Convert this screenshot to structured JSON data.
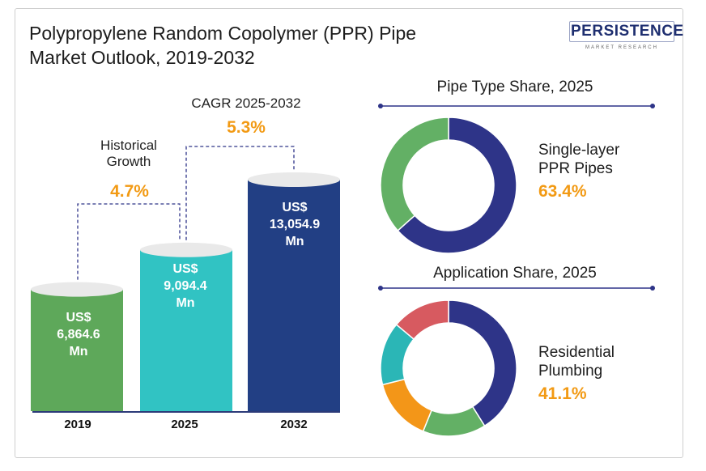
{
  "header": {
    "title_line1": "Polypropylene Random Copolymer (PPR) Pipe",
    "title_line2": "Market Outlook, 2019-2032",
    "logo_text": "PERSISTENCE",
    "logo_sub": "MARKET RESEARCH"
  },
  "colors": {
    "bar_2019": "#5ea85a",
    "bar_2025": "#31c3c3",
    "bar_2032": "#223f84",
    "orange": "#f29a14",
    "donut_navy": "#2e3488",
    "donut_green": "#63b065",
    "donut_orange": "#f39618",
    "donut_teal": "#2bb6b6",
    "donut_red": "#d75a60"
  },
  "annotations": {
    "historical_label_line1": "Historical",
    "historical_label_line2": "Growth",
    "historical_value": "4.7%",
    "cagr_label": "CAGR 2025-2032",
    "cagr_value": "5.3%"
  },
  "chart_data": [
    {
      "type": "bar",
      "categories": [
        "2019",
        "2025",
        "2032"
      ],
      "values": [
        6864.6,
        9094.4,
        13054.9
      ],
      "value_labels": [
        [
          "US$",
          "6,864.6",
          "Mn"
        ],
        [
          "US$",
          "9,094.4",
          "Mn"
        ],
        [
          "US$",
          "13,054.9",
          "Mn"
        ]
      ]
    },
    {
      "type": "pie",
      "title": "Pipe Type Share, 2025",
      "highlight_label_line1": "Single-layer",
      "highlight_label_line2": "PPR Pipes",
      "highlight_value": "63.4%",
      "slices": [
        {
          "value": 63.4,
          "color": "#2e3488"
        },
        {
          "value": 36.6,
          "color": "#63b065"
        }
      ]
    },
    {
      "type": "pie",
      "title": "Application Share, 2025",
      "highlight_label_line1": "Residential",
      "highlight_label_line2": "Plumbing",
      "highlight_value": "41.1%",
      "slices": [
        {
          "value": 41.1,
          "color": "#2e3488"
        },
        {
          "value": 15.0,
          "color": "#63b065"
        },
        {
          "value": 15.0,
          "color": "#f39618"
        },
        {
          "value": 15.0,
          "color": "#2bb6b6"
        },
        {
          "value": 13.9,
          "color": "#d75a60"
        }
      ]
    }
  ]
}
